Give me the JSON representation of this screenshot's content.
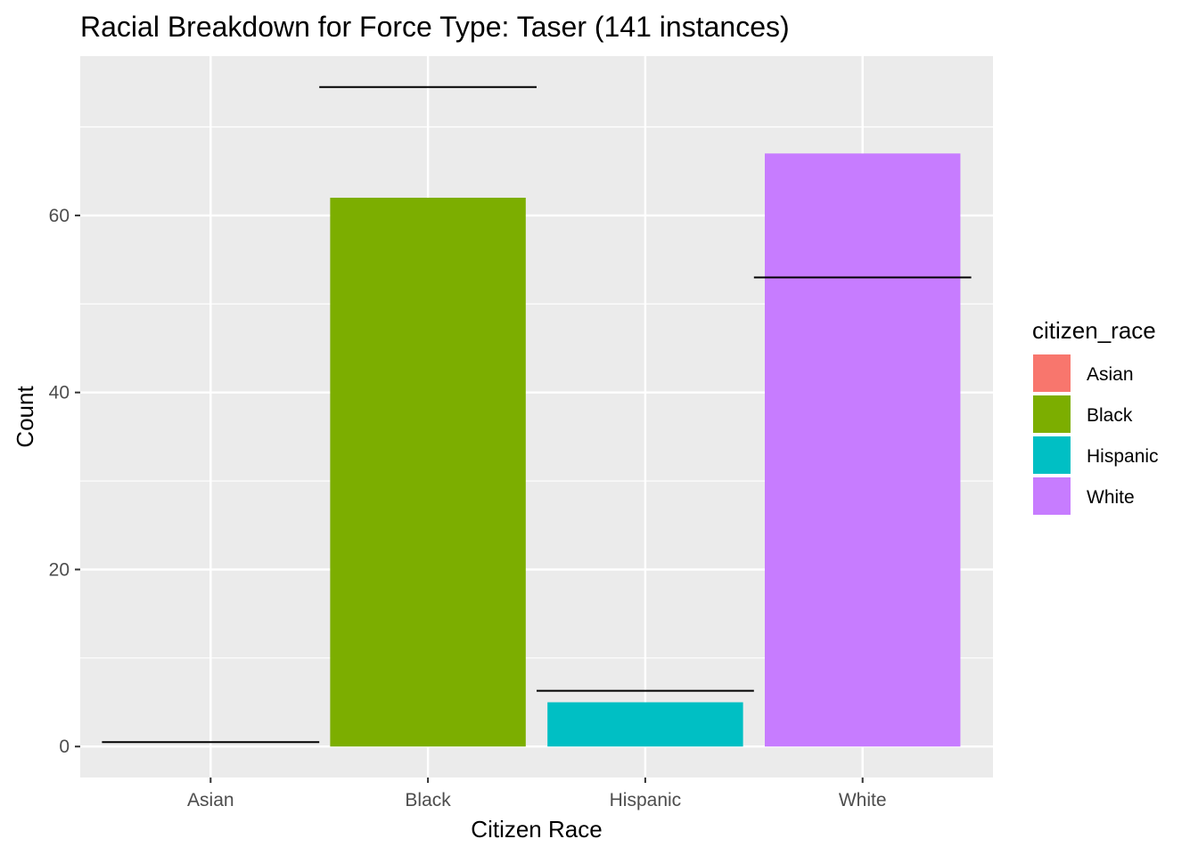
{
  "chart_data": {
    "type": "bar",
    "title": "Racial Breakdown for Force Type: Taser (141 instances)",
    "xlabel": "Citizen Race",
    "ylabel": "Count",
    "categories": [
      "Asian",
      "Black",
      "Hispanic",
      "White"
    ],
    "values": [
      0,
      62,
      5,
      67
    ],
    "colors": [
      "#F8766D",
      "#7CAE00",
      "#00BFC4",
      "#C77CFF"
    ],
    "reference_values": [
      0.5,
      74.5,
      6.3,
      53
    ],
    "reference_color": "#000000",
    "ylim": [
      -3.5,
      78
    ],
    "yticks": [
      0,
      20,
      40,
      60
    ],
    "ytick_labels": [
      "0",
      "20",
      "40",
      "60"
    ],
    "grid": true,
    "panel_background": "#EBEBEB",
    "legend": {
      "title": "citizen_race",
      "position": "right",
      "entries": [
        "Asian",
        "Black",
        "Hispanic",
        "White"
      ]
    }
  }
}
